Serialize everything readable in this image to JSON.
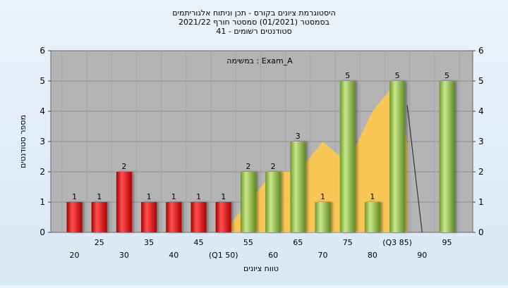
{
  "chart_data": {
    "type": "bar",
    "title_lines": [
      "היסטוגרמת ציונים בקורס - תכן וניתוח אלגוריתמים",
      "בסמסטר  (01/2021)  סמסטר חורף 2021/22",
      "סטודנטים רשומים - 41"
    ],
    "annotation": "במשימה : Exam_A",
    "xlabel": "טווח ציונים",
    "ylabel": "מספר סטודנטים",
    "ylim": [
      0,
      6
    ],
    "y_ticks": [
      "0",
      "1",
      "2",
      "3",
      "4",
      "5",
      "6"
    ],
    "categories": [
      "20",
      "25",
      "30",
      "35",
      "40",
      "45",
      "(Q1 50)",
      "55",
      "60",
      "65",
      "70",
      "75",
      "80",
      "(Q3 85)",
      "90",
      "95"
    ],
    "values": [
      1,
      1,
      2,
      1,
      1,
      1,
      1,
      2,
      2,
      3,
      1,
      5,
      1,
      5,
      0,
      5
    ],
    "bar_colors": [
      "red",
      "red",
      "red",
      "red",
      "red",
      "red",
      "red",
      "green",
      "green",
      "green",
      "green",
      "green",
      "green",
      "green",
      "green",
      "green"
    ],
    "value_labels": [
      "1",
      "1",
      "2",
      "1",
      "1",
      "1",
      "1",
      "2",
      "2",
      "3",
      "1",
      "5",
      "1",
      "5",
      "",
      "5"
    ],
    "area_series": {
      "color": "#ffc84a",
      "points": [
        [
          6,
          0
        ],
        [
          7,
          1
        ],
        [
          8,
          2
        ],
        [
          9,
          2
        ],
        [
          10,
          3
        ],
        [
          11,
          2.3
        ],
        [
          12,
          4
        ],
        [
          13,
          5
        ],
        [
          13.4,
          2.9
        ]
      ]
    },
    "line_series": {
      "color": "#333333",
      "points": [
        [
          13.4,
          4.2
        ],
        [
          14,
          0
        ]
      ]
    },
    "grid": true,
    "legend": "none",
    "colors": {
      "plot_bg": "#b4b4b4",
      "red_bar": "#e02020",
      "green_bar": "#8fc23e"
    }
  }
}
